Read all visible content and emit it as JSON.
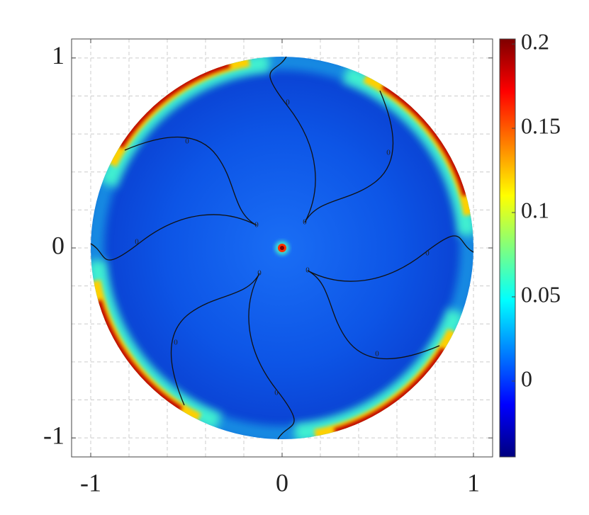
{
  "chart_data": {
    "type": "disk-heatmap",
    "xlim": [
      -1.1,
      1.1
    ],
    "ylim": [
      -1.1,
      1.1
    ],
    "xticks": [
      -1,
      0,
      1
    ],
    "yticks": [
      -1,
      0,
      1
    ],
    "minor_ticks": [
      -1,
      -0.8,
      -0.6,
      -0.4,
      -0.2,
      0,
      0.2,
      0.4,
      0.6,
      0.8,
      1
    ],
    "grid": true,
    "colormap": "jet",
    "clim": [
      -0.045,
      0.203
    ],
    "cticks": [
      0,
      0.05,
      0.1,
      0.15,
      0.2
    ],
    "contour_levels": [
      0
    ]
  }
}
